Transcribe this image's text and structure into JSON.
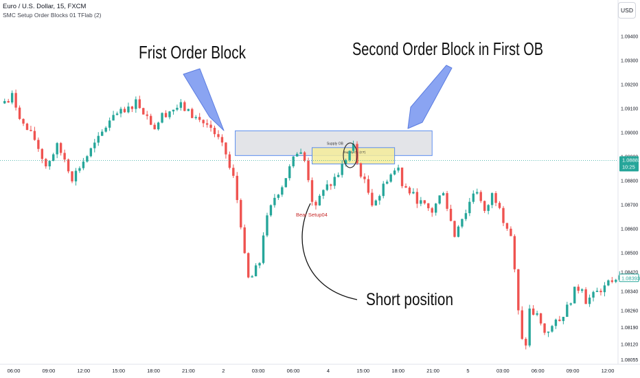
{
  "header": {
    "symbol": "Euro / U.S. Dollar, 15, FXCM",
    "indicator": "SMC Setup Order Blocks 01 TFlab (2)",
    "currency_button": "USD"
  },
  "colors": {
    "bull": "#26a69a",
    "bear": "#ef5350",
    "ob_fill": "#e3e4e8",
    "ob_border": "#5b8def",
    "inner_ob": "#f4ec9a",
    "arrow": "#8aa4f2",
    "price_line": "#26a69a"
  },
  "annotations": {
    "first_ob": "Frist Order Block",
    "second_ob": "Second Order Block in First OB",
    "short_pos": "Short position",
    "supply_ob": "Supply OB",
    "supply_ob_inner": "Supply OB (CT)",
    "bear_setup": "Bear Setup04"
  },
  "price_tags": {
    "current": "1.08883",
    "timer": "10:25",
    "last": "1.08393"
  },
  "chart_data": {
    "type": "candlestick",
    "ylim": [
      1.08035,
      1.0955
    ],
    "y_ticks": [
      "1.09400",
      "1.09300",
      "1.09200",
      "1.09100",
      "1.09000",
      "1.08900",
      "1.08800",
      "1.08700",
      "1.08600",
      "1.08500",
      "1.08420",
      "1.08340",
      "1.08260",
      "1.08190",
      "1.08120",
      "1.08055"
    ],
    "x_ticks": [
      "06:00",
      "09:00",
      "12:00",
      "15:00",
      "18:00",
      "21:00",
      "2",
      "03:00",
      "06:00",
      "4",
      "15:00",
      "18:00",
      "21:00",
      "5",
      "03:00",
      "06:00",
      "09:00",
      "12:00"
    ],
    "path": [
      [
        0,
        1.0912
      ],
      [
        3,
        1.0915
      ],
      [
        6,
        1.0903
      ],
      [
        9,
        1.0897
      ],
      [
        12,
        1.0886
      ],
      [
        15,
        1.0894
      ],
      [
        17,
        1.0889
      ],
      [
        19,
        1.0881
      ],
      [
        22,
        1.0888
      ],
      [
        26,
        1.0897
      ],
      [
        30,
        1.0908
      ],
      [
        33,
        1.0908
      ],
      [
        36,
        1.0913
      ],
      [
        38,
        1.0909
      ],
      [
        41,
        1.0902
      ],
      [
        43,
        1.0907
      ],
      [
        45,
        1.0909
      ],
      [
        48,
        1.0911
      ],
      [
        51,
        1.0907
      ],
      [
        53,
        1.0905
      ],
      [
        56,
        1.0902
      ],
      [
        58,
        1.0897
      ],
      [
        60,
        1.0891
      ],
      [
        61,
        1.0885
      ],
      [
        62,
        1.0881
      ],
      [
        63,
        1.0872
      ],
      [
        64,
        1.0862
      ],
      [
        65,
        1.0848
      ],
      [
        66,
        1.0839
      ],
      [
        67,
        1.084
      ],
      [
        69,
        1.0846
      ],
      [
        70,
        1.0858
      ],
      [
        71,
        1.0864
      ],
      [
        73,
        1.0873
      ],
      [
        75,
        1.0878
      ],
      [
        77,
        1.0885
      ],
      [
        79,
        1.0892
      ],
      [
        80,
        1.0892
      ],
      [
        81,
        1.0888
      ],
      [
        82,
        1.0881
      ],
      [
        83,
        1.0872
      ],
      [
        84,
        1.0868
      ],
      [
        86,
        1.0877
      ],
      [
        88,
        1.0879
      ],
      [
        90,
        1.0883
      ],
      [
        92,
        1.0889
      ],
      [
        93,
        1.0892
      ],
      [
        94,
        1.0894
      ],
      [
        95,
        1.0887
      ],
      [
        97,
        1.0879
      ],
      [
        99,
        1.0871
      ],
      [
        101,
        1.0874
      ],
      [
        103,
        1.0881
      ],
      [
        105,
        1.0884
      ],
      [
        106,
        1.0885
      ],
      [
        107,
        1.0879
      ],
      [
        109,
        1.0876
      ],
      [
        111,
        1.0872
      ],
      [
        113,
        1.0869
      ],
      [
        115,
        1.0867
      ],
      [
        117,
        1.0873
      ],
      [
        118,
        1.0876
      ],
      [
        119,
        1.0869
      ],
      [
        121,
        1.0857
      ],
      [
        122,
        1.0862
      ],
      [
        124,
        1.0867
      ],
      [
        126,
        1.0875
      ],
      [
        127,
        1.0876
      ],
      [
        129,
        1.0866
      ],
      [
        131,
        1.0874
      ],
      [
        133,
        1.087
      ],
      [
        134,
        1.0864
      ],
      [
        136,
        1.0857
      ],
      [
        137,
        1.0842
      ],
      [
        138,
        1.0825
      ],
      [
        139,
        1.0813
      ],
      [
        140,
        1.0812
      ],
      [
        141,
        1.0826
      ],
      [
        143,
        1.0823
      ],
      [
        145,
        1.0817
      ],
      [
        147,
        1.0819
      ],
      [
        149,
        1.0822
      ],
      [
        151,
        1.0827
      ],
      [
        153,
        1.0834
      ],
      [
        155,
        1.0836
      ],
      [
        156,
        1.083
      ],
      [
        158,
        1.0832
      ],
      [
        160,
        1.0835
      ],
      [
        162,
        1.0837
      ],
      [
        164,
        1.0839
      ]
    ],
    "order_blocks": [
      {
        "label": "Supply OB",
        "x0": 62,
        "x1": 114,
        "top": 1.09006,
        "bottom": 1.08903
      },
      {
        "label": "Supply OB (CT)",
        "x0": 82,
        "x1": 104,
        "top": 1.08936,
        "bottom": 1.08868
      }
    ],
    "current_price": 1.08883,
    "last_price": 1.08393
  }
}
